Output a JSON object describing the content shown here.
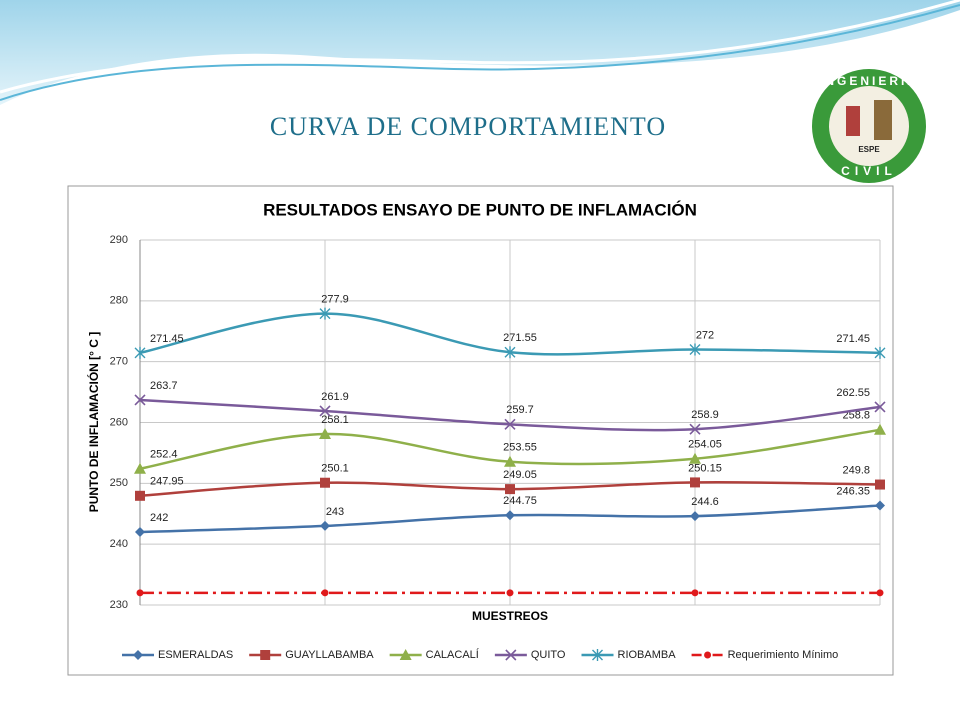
{
  "slide_title": "CURVA DE COMPORTAMIENTO",
  "logo": {
    "top": "INGENIERIA",
    "middle": "ESPE",
    "bottom": "CIVIL"
  },
  "chart_data": {
    "type": "line",
    "title": "RESULTADOS ENSAYO DE PUNTO DE INFLAMACIÓN",
    "x_label": "MUESTREOS",
    "y_label": "PUNTO DE INFLAMACIÓN [° C ]",
    "categories": [
      null,
      null,
      null,
      null,
      null
    ],
    "ylim": [
      230,
      290
    ],
    "yticks": [
      230,
      240,
      250,
      260,
      270,
      280,
      290
    ],
    "grid": true,
    "smooth": true,
    "legend": "bottom",
    "series": [
      {
        "name": "ESMERALDAS",
        "color": "#4472a8",
        "marker": "diamond",
        "dashed": false,
        "data_labels": true,
        "values": [
          242,
          243,
          244.75,
          244.6,
          246.35
        ]
      },
      {
        "name": "GUAYLLABAMBA",
        "color": "#b0403c",
        "marker": "square",
        "dashed": false,
        "data_labels": true,
        "values": [
          247.95,
          250.1,
          249.05,
          250.15,
          249.8
        ]
      },
      {
        "name": "CALACALÍ",
        "color": "#8fb04a",
        "marker": "triangle",
        "dashed": false,
        "data_labels": true,
        "values": [
          252.4,
          258.1,
          253.55,
          254.05,
          258.8
        ]
      },
      {
        "name": "QUITO",
        "color": "#7a5a9a",
        "marker": "x",
        "dashed": false,
        "data_labels": true,
        "values": [
          263.7,
          261.9,
          259.7,
          258.9,
          262.55
        ]
      },
      {
        "name": "RIOBAMBA",
        "color": "#3b9ab4",
        "marker": "star",
        "dashed": false,
        "data_labels": true,
        "values": [
          271.45,
          277.9,
          271.55,
          272,
          271.45
        ]
      },
      {
        "name": "Requerimiento Mínimo",
        "color": "#e0191b",
        "marker": "circle",
        "dashed": true,
        "data_labels": false,
        "values": [
          232,
          232,
          232,
          232,
          232
        ]
      }
    ]
  }
}
